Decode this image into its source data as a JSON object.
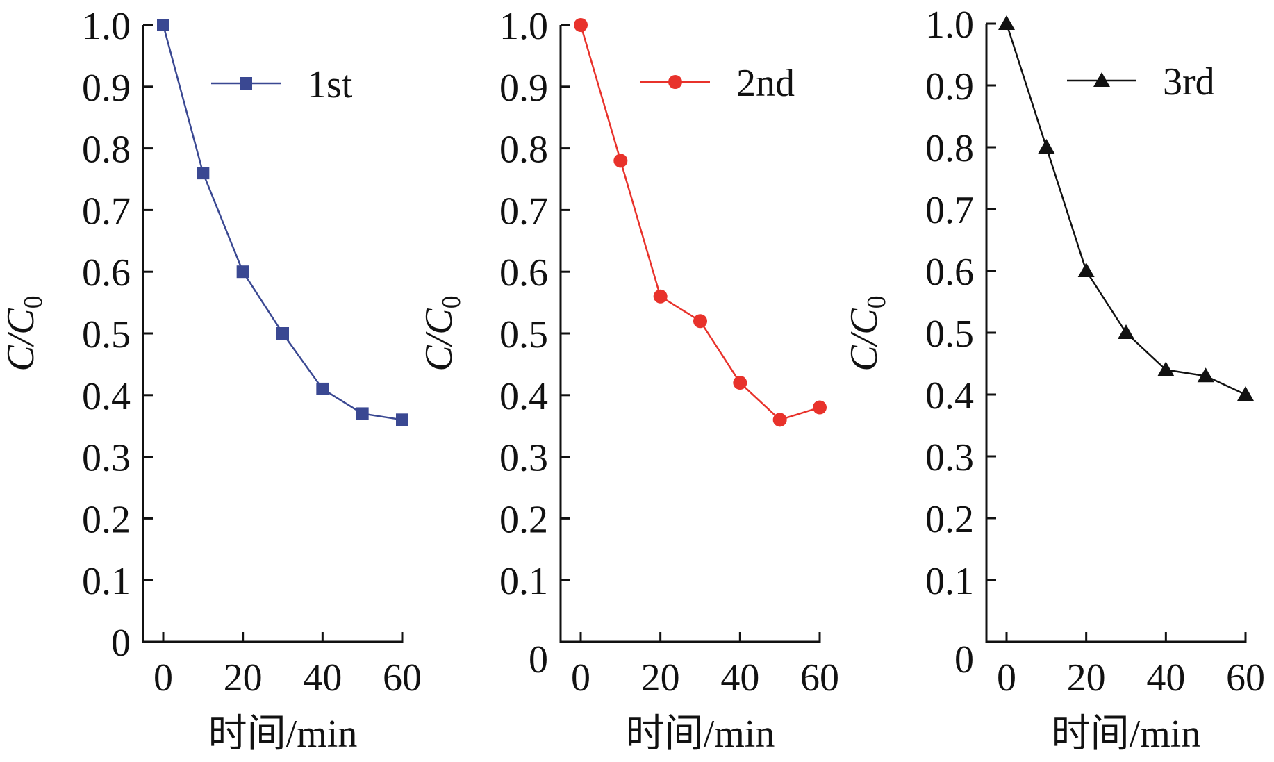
{
  "chart_data": [
    {
      "type": "line",
      "xlabel": "时间/min",
      "ylabel": "C/C0",
      "ylabel_main": "C/C",
      "ylabel_sub": "0",
      "xlim": [
        0,
        60
      ],
      "ylim": [
        0,
        1.0
      ],
      "xticks": [
        "0",
        "20",
        "40",
        "60"
      ],
      "yticks": [
        "0",
        "0.1",
        "0.2",
        "0.3",
        "0.4",
        "0.5",
        "0.6",
        "0.7",
        "0.8",
        "0.9",
        "1.0"
      ],
      "legend_position": "top-right",
      "series": [
        {
          "name": "1st",
          "marker": "square",
          "color": "#3a4892",
          "x": [
            0,
            10,
            20,
            30,
            40,
            50,
            60
          ],
          "values": [
            1.0,
            0.76,
            0.6,
            0.5,
            0.41,
            0.37,
            0.36
          ]
        }
      ]
    },
    {
      "type": "line",
      "xlabel": "时间/min",
      "ylabel": "C/C0",
      "ylabel_main": "C/C",
      "ylabel_sub": "0",
      "xlim": [
        0,
        60
      ],
      "ylim": [
        0,
        1.0
      ],
      "xticks": [
        "0",
        "20",
        "40",
        "60"
      ],
      "yticks": [
        "0",
        "0.1",
        "0.2",
        "0.3",
        "0.4",
        "0.5",
        "0.6",
        "0.7",
        "0.8",
        "0.9",
        "1.0"
      ],
      "legend_position": "top-right",
      "series": [
        {
          "name": "2nd",
          "marker": "circle",
          "color": "#e8322b",
          "x": [
            0,
            10,
            20,
            30,
            40,
            50,
            60
          ],
          "values": [
            1.0,
            0.78,
            0.56,
            0.52,
            0.42,
            0.36,
            0.38
          ]
        }
      ]
    },
    {
      "type": "line",
      "xlabel": "时间/min",
      "ylabel": "C/C0",
      "ylabel_main": "C/C",
      "ylabel_sub": "0",
      "xlim": [
        0,
        60
      ],
      "ylim": [
        0,
        1.0
      ],
      "xticks": [
        "0",
        "20",
        "40",
        "60"
      ],
      "yticks": [
        "0",
        "0.1",
        "0.2",
        "0.3",
        "0.4",
        "0.5",
        "0.6",
        "0.7",
        "0.8",
        "0.9",
        "1.0"
      ],
      "legend_position": "top-right",
      "series": [
        {
          "name": "3rd",
          "marker": "triangle",
          "color": "#111111",
          "x": [
            0,
            10,
            20,
            30,
            40,
            50,
            60
          ],
          "values": [
            1.0,
            0.8,
            0.6,
            0.5,
            0.44,
            0.43,
            0.4
          ]
        }
      ]
    }
  ]
}
